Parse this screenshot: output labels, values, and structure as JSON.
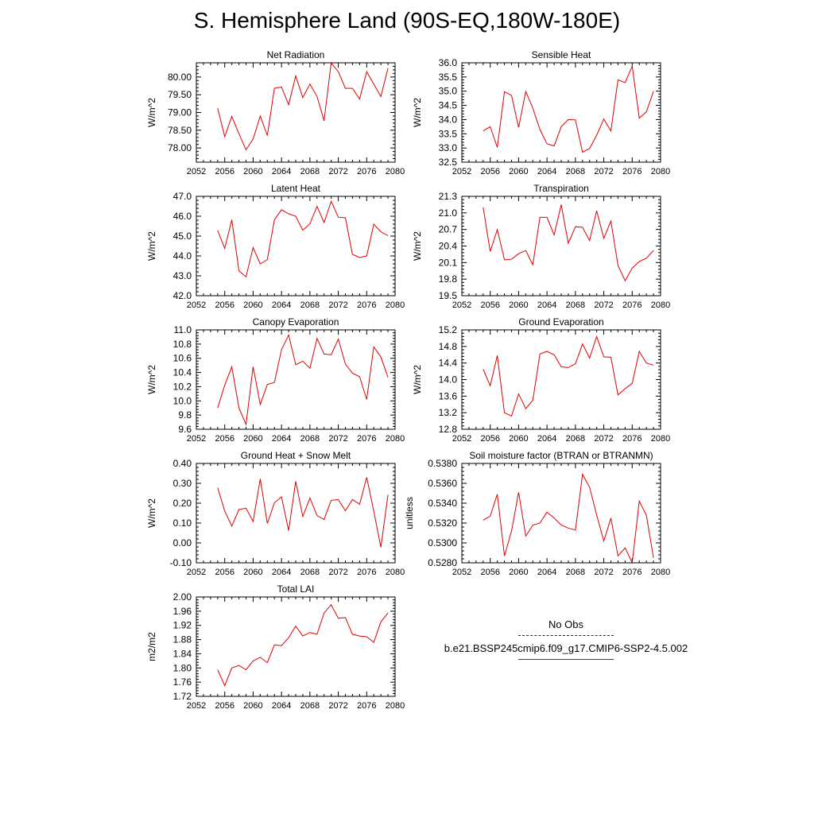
{
  "title": "S. Hemisphere Land (90S-EQ,180W-180E)",
  "legend": {
    "obs_label": "No Obs",
    "model_label": "b.e21.BSSP245cmip6.f09_g17.CMIP6-SSP2-4.5.002",
    "obs_color": "#1a1a8c",
    "model_color": "#e00000"
  },
  "chart_data": [
    {
      "type": "line",
      "title": "Net Radiation",
      "ylabel": "W/m^2",
      "xlim": [
        2052,
        2080
      ],
      "ylim": [
        77.6,
        80.4
      ],
      "xticks": [
        2052,
        2056,
        2060,
        2064,
        2068,
        2072,
        2076,
        2080
      ],
      "yticks": [
        "78.00",
        "78.50",
        "79.00",
        "79.50",
        "80.00"
      ],
      "x": [
        2055,
        2056,
        2057,
        2058,
        2059,
        2060,
        2061,
        2062,
        2063,
        2064,
        2065,
        2066,
        2067,
        2068,
        2069,
        2070,
        2071,
        2072,
        2073,
        2074,
        2075,
        2076,
        2077,
        2078,
        2079
      ],
      "series": [
        {
          "values": [
            79.12,
            78.32,
            78.89,
            78.4,
            77.95,
            78.25,
            78.9,
            78.35,
            79.68,
            79.72,
            79.22,
            80.03,
            79.42,
            79.8,
            79.45,
            78.77,
            80.4,
            80.15,
            79.68,
            79.68,
            79.38,
            80.15,
            79.8,
            79.45,
            80.25
          ]
        }
      ]
    },
    {
      "type": "line",
      "title": "Sensible Heat",
      "ylabel": "W/m^2",
      "xlim": [
        2052,
        2080
      ],
      "ylim": [
        32.5,
        36.0
      ],
      "xticks": [
        2052,
        2056,
        2060,
        2064,
        2068,
        2072,
        2076,
        2080
      ],
      "yticks": [
        "32.5",
        "33.0",
        "33.5",
        "34.0",
        "34.5",
        "35.0",
        "35.5",
        "36.0"
      ],
      "x": [
        2055,
        2056,
        2057,
        2058,
        2059,
        2060,
        2061,
        2062,
        2063,
        2064,
        2065,
        2066,
        2067,
        2068,
        2069,
        2070,
        2071,
        2072,
        2073,
        2074,
        2075,
        2076,
        2077,
        2078,
        2079
      ],
      "series": [
        {
          "values": [
            33.6,
            33.75,
            33.02,
            34.98,
            34.85,
            33.72,
            34.99,
            34.4,
            33.65,
            33.15,
            33.07,
            33.75,
            34.0,
            33.99,
            32.85,
            32.98,
            33.45,
            34.02,
            33.6,
            35.4,
            35.3,
            35.88,
            34.05,
            34.27,
            35.0
          ]
        }
      ]
    },
    {
      "type": "line",
      "title": "Latent Heat",
      "ylabel": "W/m^2",
      "xlim": [
        2052,
        2080
      ],
      "ylim": [
        42.0,
        47.0
      ],
      "xticks": [
        2052,
        2056,
        2060,
        2064,
        2068,
        2072,
        2076,
        2080
      ],
      "yticks": [
        "42.0",
        "43.0",
        "44.0",
        "45.0",
        "46.0",
        "47.0"
      ],
      "x": [
        2055,
        2056,
        2057,
        2058,
        2059,
        2060,
        2061,
        2062,
        2063,
        2064,
        2065,
        2066,
        2067,
        2068,
        2069,
        2070,
        2071,
        2072,
        2073,
        2074,
        2075,
        2076,
        2077,
        2078,
        2079
      ],
      "series": [
        {
          "values": [
            45.28,
            44.38,
            45.82,
            43.25,
            42.95,
            44.42,
            43.6,
            43.82,
            45.82,
            46.33,
            46.12,
            46.0,
            45.3,
            45.62,
            46.5,
            45.68,
            46.75,
            45.95,
            45.92,
            44.08,
            43.92,
            44.0,
            45.6,
            45.22,
            45.02
          ]
        }
      ]
    },
    {
      "type": "line",
      "title": "Transpiration",
      "ylabel": "W/m^2",
      "xlim": [
        2052,
        2080
      ],
      "ylim": [
        19.5,
        21.3
      ],
      "xticks": [
        2052,
        2056,
        2060,
        2064,
        2068,
        2072,
        2076,
        2080
      ],
      "yticks": [
        "19.5",
        "19.8",
        "20.1",
        "20.4",
        "20.7",
        "21.0",
        "21.3"
      ],
      "x": [
        2055,
        2056,
        2057,
        2058,
        2059,
        2060,
        2061,
        2062,
        2063,
        2064,
        2065,
        2066,
        2067,
        2068,
        2069,
        2070,
        2071,
        2072,
        2073,
        2074,
        2075,
        2076,
        2077,
        2078,
        2079
      ],
      "series": [
        {
          "values": [
            21.1,
            20.3,
            20.7,
            20.15,
            20.16,
            20.26,
            20.32,
            20.06,
            20.92,
            20.92,
            20.6,
            21.15,
            20.45,
            20.75,
            20.74,
            20.5,
            21.04,
            20.54,
            20.85,
            20.05,
            19.77,
            20.0,
            20.12,
            20.18,
            20.32
          ]
        }
      ]
    },
    {
      "type": "line",
      "title": "Canopy Evaporation",
      "ylabel": "W/m^2",
      "xlim": [
        2052,
        2080
      ],
      "ylim": [
        9.6,
        11.0
      ],
      "xticks": [
        2052,
        2056,
        2060,
        2064,
        2068,
        2072,
        2076,
        2080
      ],
      "yticks": [
        "9.6",
        "9.8",
        "10.0",
        "10.2",
        "10.4",
        "10.6",
        "10.8",
        "11.0"
      ],
      "x": [
        2055,
        2056,
        2057,
        2058,
        2059,
        2060,
        2061,
        2062,
        2063,
        2064,
        2065,
        2066,
        2067,
        2068,
        2069,
        2070,
        2071,
        2072,
        2073,
        2074,
        2075,
        2076,
        2077,
        2078,
        2079
      ],
      "series": [
        {
          "values": [
            9.9,
            10.22,
            10.48,
            9.9,
            9.67,
            10.48,
            9.95,
            10.23,
            10.26,
            10.72,
            10.93,
            10.51,
            10.56,
            10.46,
            10.88,
            10.66,
            10.65,
            10.87,
            10.52,
            10.39,
            10.34,
            10.02,
            10.76,
            10.62,
            10.33
          ]
        }
      ]
    },
    {
      "type": "line",
      "title": "Ground Evaporation",
      "ylabel": "W/m^2",
      "xlim": [
        2052,
        2080
      ],
      "ylim": [
        12.8,
        15.2
      ],
      "xticks": [
        2052,
        2056,
        2060,
        2064,
        2068,
        2072,
        2076,
        2080
      ],
      "yticks": [
        "12.8",
        "13.2",
        "13.6",
        "14.0",
        "14.4",
        "14.8",
        "15.2"
      ],
      "x": [
        2055,
        2056,
        2057,
        2058,
        2059,
        2060,
        2061,
        2062,
        2063,
        2064,
        2065,
        2066,
        2067,
        2068,
        2069,
        2070,
        2071,
        2072,
        2073,
        2074,
        2075,
        2076,
        2077,
        2078,
        2079
      ],
      "series": [
        {
          "values": [
            14.25,
            13.85,
            14.58,
            13.2,
            13.12,
            13.65,
            13.3,
            13.5,
            14.62,
            14.68,
            14.6,
            14.31,
            14.29,
            14.38,
            14.86,
            14.52,
            15.04,
            14.55,
            14.54,
            13.63,
            13.78,
            13.91,
            14.68,
            14.4,
            14.35
          ]
        }
      ]
    },
    {
      "type": "line",
      "title": "Ground Heat + Snow Melt",
      "ylabel": "W/m^2",
      "xlim": [
        2052,
        2080
      ],
      "ylim": [
        -0.1,
        0.4
      ],
      "xticks": [
        2052,
        2056,
        2060,
        2064,
        2068,
        2072,
        2076,
        2080
      ],
      "yticks": [
        "-0.10",
        "0.00",
        "0.10",
        "0.20",
        "0.30",
        "0.40"
      ],
      "x": [
        2055,
        2056,
        2057,
        2058,
        2059,
        2060,
        2061,
        2062,
        2063,
        2064,
        2065,
        2066,
        2067,
        2068,
        2069,
        2070,
        2071,
        2072,
        2073,
        2074,
        2075,
        2076,
        2077,
        2078,
        2079
      ],
      "series": [
        {
          "values": [
            0.278,
            0.16,
            0.085,
            0.168,
            0.175,
            0.108,
            0.322,
            0.098,
            0.202,
            0.232,
            0.062,
            0.31,
            0.133,
            0.226,
            0.138,
            0.118,
            0.215,
            0.218,
            0.162,
            0.218,
            0.195,
            0.33,
            0.16,
            -0.022,
            0.242
          ]
        }
      ]
    },
    {
      "type": "line",
      "title": "Soil moisture factor (BTRAN or BTRANMN)",
      "ylabel": "unitless",
      "xlim": [
        2052,
        2080
      ],
      "ylim": [
        0.528,
        0.538
      ],
      "xticks": [
        2052,
        2056,
        2060,
        2064,
        2068,
        2072,
        2076,
        2080
      ],
      "yticks": [
        "0.5280",
        "0.5300",
        "0.5320",
        "0.5340",
        "0.5360",
        "0.5380"
      ],
      "x": [
        2055,
        2056,
        2057,
        2058,
        2059,
        2060,
        2061,
        2062,
        2063,
        2064,
        2065,
        2066,
        2067,
        2068,
        2069,
        2070,
        2071,
        2072,
        2073,
        2074,
        2075,
        2076,
        2077,
        2078,
        2079
      ],
      "series": [
        {
          "values": [
            0.5323,
            0.5327,
            0.5349,
            0.5287,
            0.5312,
            0.5351,
            0.5307,
            0.5318,
            0.532,
            0.5331,
            0.5325,
            0.5318,
            0.5315,
            0.5313,
            0.5369,
            0.5356,
            0.5328,
            0.5302,
            0.5325,
            0.5287,
            0.5295,
            0.528,
            0.5342,
            0.5328,
            0.5285
          ]
        }
      ]
    },
    {
      "type": "line",
      "title": "Total LAI",
      "ylabel": "m2/m2",
      "xlim": [
        2052,
        2080
      ],
      "ylim": [
        1.72,
        2.0
      ],
      "xticks": [
        2052,
        2056,
        2060,
        2064,
        2068,
        2072,
        2076,
        2080
      ],
      "yticks": [
        "1.72",
        "1.76",
        "1.80",
        "1.84",
        "1.88",
        "1.92",
        "1.96",
        "2.00"
      ],
      "x": [
        2055,
        2056,
        2057,
        2058,
        2059,
        2060,
        2061,
        2062,
        2063,
        2064,
        2065,
        2066,
        2067,
        2068,
        2069,
        2070,
        2071,
        2072,
        2073,
        2074,
        2075,
        2076,
        2077,
        2078,
        2079
      ],
      "series": [
        {
          "values": [
            1.795,
            1.75,
            1.8,
            1.807,
            1.795,
            1.82,
            1.83,
            1.815,
            1.865,
            1.863,
            1.885,
            1.918,
            1.89,
            1.9,
            1.895,
            1.955,
            1.978,
            1.94,
            1.942,
            1.895,
            1.89,
            1.888,
            1.872,
            1.93,
            1.955
          ]
        }
      ]
    }
  ]
}
